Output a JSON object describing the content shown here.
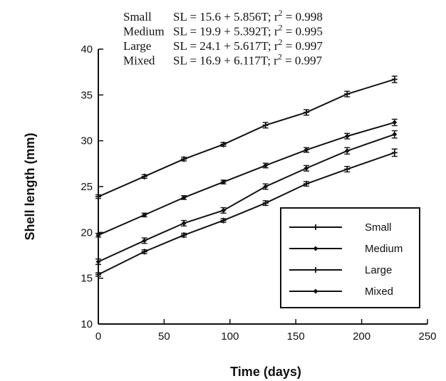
{
  "chart_data": {
    "type": "line",
    "title": "",
    "xlabel": "Time  (days)",
    "ylabel": "Shell  length  (mm)",
    "xlim": [
      0,
      250
    ],
    "ylim": [
      10,
      40
    ],
    "xticks": [
      0,
      50,
      100,
      150,
      200,
      250
    ],
    "yticks": [
      10,
      15,
      20,
      25,
      30,
      35,
      40
    ],
    "grid": false,
    "legend_position": "bottom-right",
    "x": [
      0,
      35,
      65,
      95,
      127,
      158,
      189,
      225
    ],
    "series": [
      {
        "name": "Small",
        "marker": "plus",
        "values": [
          15.4,
          17.9,
          19.7,
          21.3,
          23.2,
          25.3,
          26.9,
          28.7
        ],
        "errors": [
          0.2,
          0.2,
          0.2,
          0.2,
          0.25,
          0.25,
          0.3,
          0.4
        ]
      },
      {
        "name": "Medium",
        "marker": "diamond",
        "values": [
          19.7,
          21.9,
          23.8,
          25.5,
          27.3,
          29.0,
          30.5,
          32.0
        ],
        "errors": [
          0.2,
          0.2,
          0.2,
          0.2,
          0.25,
          0.25,
          0.3,
          0.35
        ]
      },
      {
        "name": "Large",
        "marker": "plus",
        "values": [
          23.9,
          26.1,
          28.0,
          29.6,
          31.7,
          33.1,
          35.1,
          36.7
        ],
        "errors": [
          0.2,
          0.2,
          0.2,
          0.2,
          0.3,
          0.3,
          0.3,
          0.35
        ]
      },
      {
        "name": "Mixed",
        "marker": "diamond",
        "values": [
          16.8,
          19.1,
          21.0,
          22.4,
          25.0,
          27.0,
          28.9,
          30.7
        ],
        "errors": [
          0.3,
          0.3,
          0.3,
          0.3,
          0.3,
          0.3,
          0.35,
          0.4
        ]
      }
    ],
    "annotations": [
      {
        "label": "Small",
        "equation": "SL = 15.6 + 5.856T;",
        "r2_label": "r",
        "r2_sup": "2",
        "r2_value": " = 0.998"
      },
      {
        "label": "Medium",
        "equation": "SL = 19.9 + 5.392T;",
        "r2_label": "r",
        "r2_sup": "2",
        "r2_value": " = 0.995"
      },
      {
        "label": "Large",
        "equation": "SL = 24.1 + 5.617T;",
        "r2_label": "r",
        "r2_sup": "2",
        "r2_value": " = 0.997"
      },
      {
        "label": "Mixed",
        "equation": "SL = 16.9 + 6.117T;",
        "r2_label": "r",
        "r2_sup": "2",
        "r2_value": " = 0.997"
      }
    ]
  }
}
